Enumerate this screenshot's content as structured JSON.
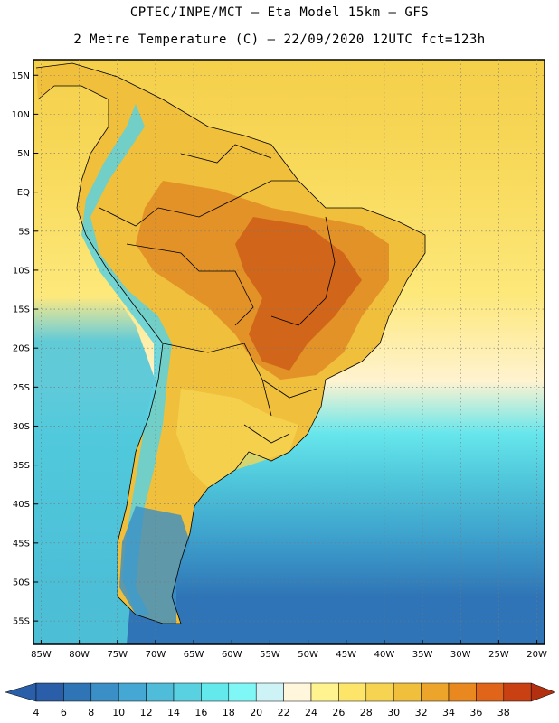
{
  "header": {
    "line1": "CPTEC/INPE/MCT –  Eta Model 15km – GFS",
    "line2": "2 Metre Temperature (C) – 22/09/2020 12UTC fct=123h"
  },
  "axes": {
    "lat_labels": [
      "15N",
      "10N",
      "5N",
      "EQ",
      "5S",
      "10S",
      "15S",
      "20S",
      "25S",
      "30S",
      "35S",
      "40S",
      "45S",
      "50S",
      "55S"
    ],
    "lat_values": [
      15,
      10,
      5,
      0,
      -5,
      -10,
      -15,
      -20,
      -25,
      -30,
      -35,
      -40,
      -45,
      -50,
      -55
    ],
    "lon_labels": [
      "85W",
      "80W",
      "75W",
      "70W",
      "65W",
      "60W",
      "55W",
      "50W",
      "45W",
      "40W",
      "35W",
      "30W",
      "25W",
      "20W"
    ],
    "lon_values": [
      -85,
      -80,
      -75,
      -70,
      -65,
      -60,
      -55,
      -50,
      -45,
      -40,
      -35,
      -30,
      -25,
      -20
    ],
    "lat_range": [
      -58,
      17
    ],
    "lon_range": [
      -86,
      -19
    ]
  },
  "colorbar": {
    "labels": [
      "4",
      "6",
      "8",
      "10",
      "12",
      "14",
      "16",
      "18",
      "20",
      "22",
      "24",
      "26",
      "28",
      "30",
      "32",
      "34",
      "36",
      "38"
    ],
    "colors": [
      "#2a5ea8",
      "#2f75b6",
      "#3a8fc6",
      "#45a7d4",
      "#4fbdd9",
      "#5ad1e0",
      "#63e8ec",
      "#7ff7f7",
      "#cdf3f7",
      "#fff6dc",
      "#fff38f",
      "#fde56a",
      "#f6d451",
      "#f0bf3b",
      "#eca42a",
      "#e8881f",
      "#e0651a",
      "#c94012"
    ],
    "under_color": "#2a5ea8",
    "over_color": "#b23010"
  },
  "map_colors": {
    "ocean_far_north": "#f4cf4a",
    "ocean_north": "#f8d95a",
    "ocean_equatorial": "#fde87a",
    "ocean_pale": "#fff3d0",
    "ocean_cyan": "#66e6ec",
    "ocean_teal": "#4fc6da",
    "ocean_mid": "#3da0cc",
    "ocean_south": "#2f74b6",
    "land_north": "#f0bf3b",
    "land_center": "#e08a24",
    "land_hot": "#cc5a16",
    "land_south": "#f6d451",
    "andes": "#5ad1e0",
    "patagonia": "#3a8fc6",
    "borders": "#000000"
  }
}
